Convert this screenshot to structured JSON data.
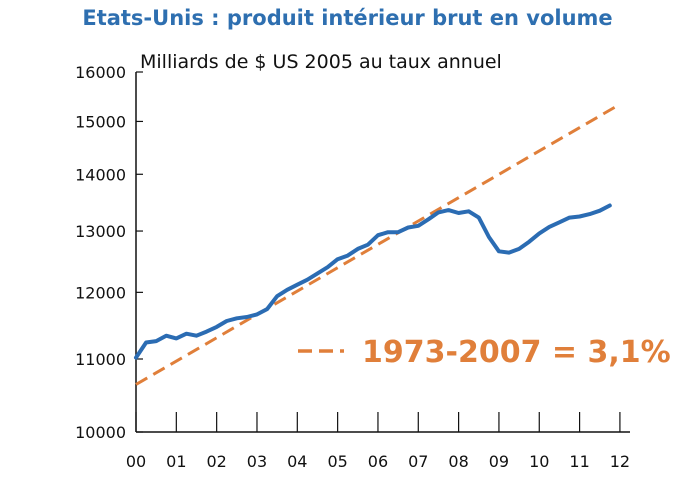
{
  "chart_data": {
    "type": "line",
    "title": "Etats-Unis : produit intérieur brut en volume",
    "subtitle": "Milliards de $ US 2005 au taux annuel",
    "y_scale": "log",
    "ylim": [
      10000,
      16000
    ],
    "yticks": [
      10000,
      11000,
      12000,
      13000,
      14000,
      15000,
      16000
    ],
    "ytick_labels": [
      "10000",
      "11000",
      "12000",
      "13000",
      "14000",
      "15000",
      "16000"
    ],
    "xlim": [
      2000.0,
      2012.25
    ],
    "xticks": [
      2000,
      2001,
      2002,
      2003,
      2004,
      2005,
      2006,
      2007,
      2008,
      2009,
      2010,
      2011,
      2012
    ],
    "xtick_labels": [
      "00",
      "01",
      "02",
      "03",
      "04",
      "05",
      "06",
      "07",
      "08",
      "09",
      "10",
      "11",
      "12"
    ],
    "grid": false,
    "colors": {
      "series": "#2b6cb3",
      "trend": "#e07f3a",
      "title": "#2e6fb0"
    },
    "series": [
      {
        "x": [
          2000.0,
          2000.25,
          2000.5,
          2000.75,
          2001.0,
          2001.25,
          2001.5,
          2001.75,
          2002.0,
          2002.25,
          2002.5,
          2002.75,
          2003.0,
          2003.25,
          2003.5,
          2003.75,
          2004.0,
          2004.25,
          2004.5,
          2004.75,
          2005.0,
          2005.25,
          2005.5,
          2005.75,
          2006.0,
          2006.25,
          2006.5,
          2006.75,
          2007.0,
          2007.25,
          2007.5,
          2007.75,
          2008.0,
          2008.25,
          2008.5,
          2008.75,
          2009.0,
          2009.25,
          2009.5,
          2009.75,
          2010.0,
          2010.25,
          2010.5,
          2010.75,
          2011.0,
          2011.25,
          2011.5,
          2011.75
        ],
        "values": [
          11020,
          11240,
          11260,
          11340,
          11300,
          11370,
          11340,
          11400,
          11470,
          11560,
          11600,
          11620,
          11660,
          11740,
          11940,
          12040,
          12120,
          12200,
          12300,
          12400,
          12530,
          12590,
          12700,
          12770,
          12930,
          12980,
          12980,
          13060,
          13090,
          13200,
          13320,
          13360,
          13310,
          13340,
          13230,
          12900,
          12660,
          12640,
          12700,
          12820,
          12960,
          13070,
          13150,
          13230,
          13250,
          13290,
          13350,
          13440
        ]
      },
      {
        "name": "1973-2007 = 3,1%",
        "x": [
          2000.0,
          2012.0
        ],
        "values": [
          10640,
          15340
        ]
      }
    ]
  }
}
